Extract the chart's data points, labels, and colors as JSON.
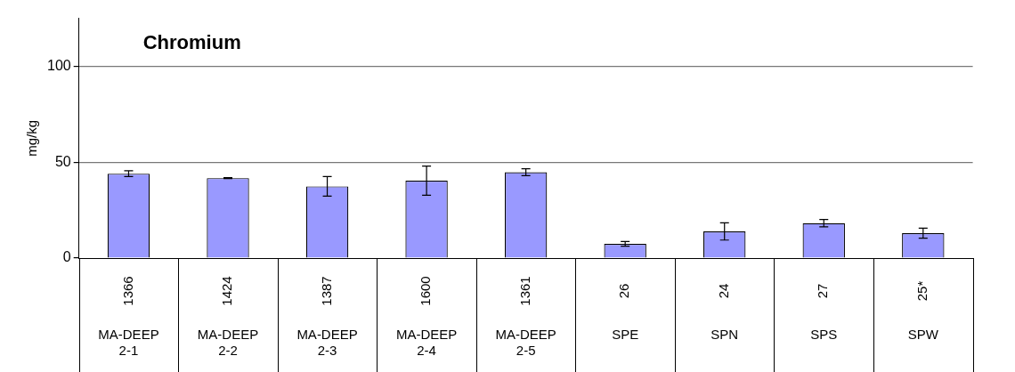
{
  "chart_data": {
    "type": "bar",
    "title": "Chromium",
    "ylabel": "mg/kg",
    "categories": [
      "MA-DEEP 2-1",
      "MA-DEEP 2-2",
      "MA-DEEP 2-3",
      "MA-DEEP 2-4",
      "MA-DEEP 2-5",
      "SPE",
      "SPN",
      "SPS",
      "SPW"
    ],
    "series": [
      {
        "color": "#9999ff",
        "values": [
          44,
          41.7,
          37.4,
          40.4,
          44.8,
          7.4,
          13.9,
          18.2,
          13
        ],
        "errors": [
          1.5,
          0.2,
          5.1,
          7.6,
          1.8,
          1.2,
          4.5,
          1.9,
          2.6
        ]
      }
    ],
    "ylim": [
      0,
      125
    ],
    "yticks": [
      0,
      50,
      100
    ],
    "grid": "y",
    "legend": false,
    "annotations": [
      "1366",
      "1424",
      "1387",
      "1600",
      "1361",
      "26",
      "24",
      "27",
      "25*"
    ]
  }
}
